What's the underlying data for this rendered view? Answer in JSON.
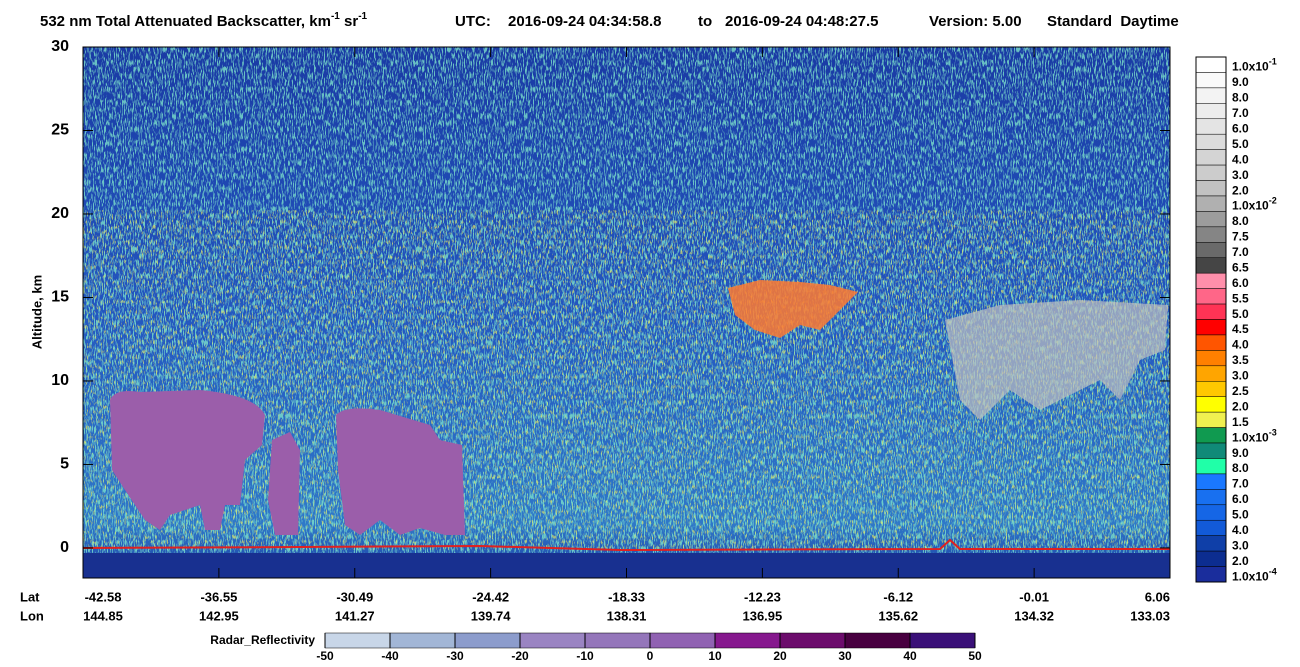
{
  "chart_data": {
    "type": "heatmap",
    "title_parts": [
      {
        "text": "532 nm Total Attenuated Backscatter, km"
      },
      {
        "sup": "-1"
      },
      {
        "text": " sr"
      },
      {
        "sup": "-1"
      }
    ],
    "utc_label": "UTC:",
    "start_time": "2016-09-24 04:34:58.8",
    "to": "to",
    "end_time": "2016-09-24 04:48:27.5",
    "version": "Version: 5.00",
    "mode": "Standard  Daytime",
    "y_label": "Altitude, km",
    "ylim": [
      -1.8,
      30
    ],
    "yticks": [
      0,
      5,
      10,
      15,
      20,
      25,
      30
    ],
    "lat_label": "Lat",
    "lon_label": "Lon",
    "lat": [
      -42.58,
      -36.55,
      -30.49,
      -24.42,
      -18.33,
      -12.23,
      -6.12,
      -0.01,
      6.06
    ],
    "lon": [
      144.85,
      142.95,
      141.27,
      139.74,
      138.31,
      136.95,
      135.62,
      134.32,
      133.03
    ],
    "colorbar": [
      {
        "label": "1.0x10",
        "exponent": "-1",
        "color": "#ffffff"
      },
      {
        "label": "9.0",
        "color": "#fafafa"
      },
      {
        "label": "8.0",
        "color": "#f3f3f3"
      },
      {
        "label": "7.0",
        "color": "#ececec"
      },
      {
        "label": "6.0",
        "color": "#e4e4e4"
      },
      {
        "label": "5.0",
        "color": "#dcdcdc"
      },
      {
        "label": "4.0",
        "color": "#d4d4d4"
      },
      {
        "label": "3.0",
        "color": "#cccccc"
      },
      {
        "label": "2.0",
        "color": "#c2c2c2"
      },
      {
        "label": "1.0x10",
        "exponent": "-2",
        "color": "#b0b0b0"
      },
      {
        "label": "8.0",
        "color": "#9c9c9c"
      },
      {
        "label": "7.5",
        "color": "#858585"
      },
      {
        "label": "7.0",
        "color": "#6a6a6a"
      },
      {
        "label": "6.5",
        "color": "#454545"
      },
      {
        "label": "6.0",
        "color": "#ff8fab"
      },
      {
        "label": "5.5",
        "color": "#ff6688"
      },
      {
        "label": "5.0",
        "color": "#ff3355"
      },
      {
        "label": "4.5",
        "color": "#ff0000"
      },
      {
        "label": "4.0",
        "color": "#ff5500"
      },
      {
        "label": "3.5",
        "color": "#ff8000"
      },
      {
        "label": "3.0",
        "color": "#ffa500"
      },
      {
        "label": "2.5",
        "color": "#ffc800"
      },
      {
        "label": "2.0",
        "color": "#ffff00"
      },
      {
        "label": "1.5",
        "color": "#f0f050"
      },
      {
        "label": "1.0x10",
        "exponent": "-3",
        "color": "#109a50"
      },
      {
        "label": "9.0",
        "color": "#108a78"
      },
      {
        "label": "8.0",
        "color": "#20ffa8"
      },
      {
        "label": "7.0",
        "color": "#1a78ff"
      },
      {
        "label": "6.0",
        "color": "#1870f0"
      },
      {
        "label": "5.0",
        "color": "#1566e6"
      },
      {
        "label": "4.0",
        "color": "#125ad8"
      },
      {
        "label": "3.0",
        "color": "#0f3fa8"
      },
      {
        "label": "2.0",
        "color": "#0c2d90"
      },
      {
        "label": "1.0x10",
        "exponent": "-4",
        "color": "#1a2d9c"
      }
    ],
    "radar_colorbar": {
      "label": "Radar_Reflectivity",
      "ticks": [
        -50,
        -40,
        -30,
        -20,
        -10,
        0,
        10,
        20,
        30,
        40,
        50
      ],
      "colors": [
        "#c8d6e8",
        "#a2b6d6",
        "#8c9ccc",
        "#9a84c2",
        "#9476ba",
        "#9062b2",
        "#86188e",
        "#6c0c6c",
        "#480040",
        "#3a1078"
      ]
    }
  }
}
